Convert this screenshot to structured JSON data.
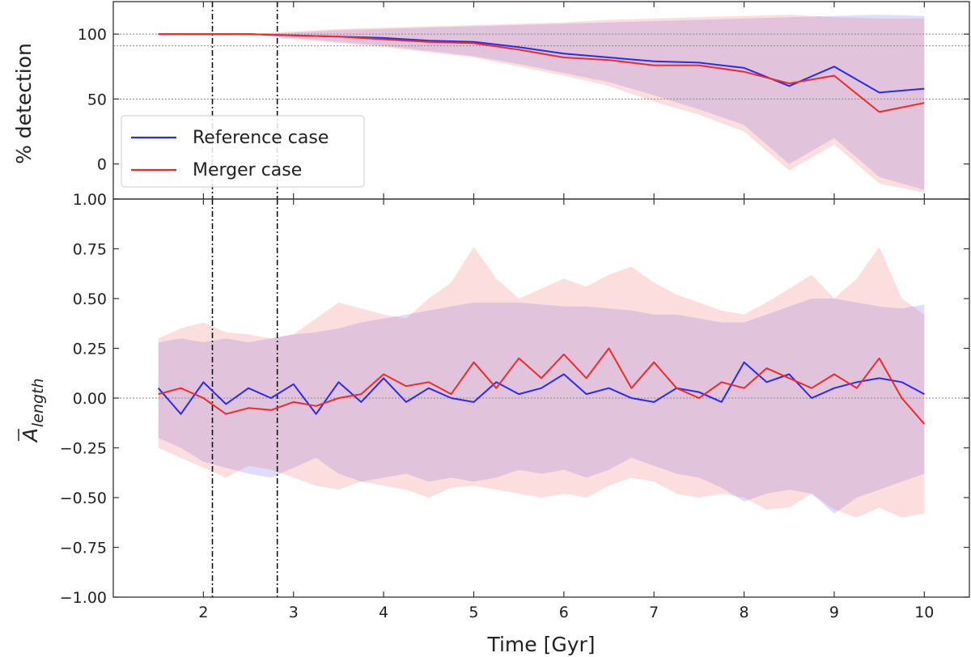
{
  "chart_data": [
    {
      "type": "line",
      "panel": "top",
      "ylabel": "% detection",
      "xlim": [
        1.0,
        10.5
      ],
      "ylim": [
        -27,
        125
      ],
      "yticks": [
        100,
        50,
        0
      ],
      "ytick_labels": [
        "100",
        "50",
        "0"
      ],
      "hlines": [
        100,
        91,
        50
      ],
      "vlines": [
        2.1,
        2.82
      ],
      "legend": {
        "placement": "lower-left",
        "entries": [
          {
            "label": "Reference case",
            "color": "#2a2af0"
          },
          {
            "label": "Merger case",
            "color": "#f02a2a"
          }
        ]
      },
      "x": [
        1.5,
        2.0,
        2.5,
        3.0,
        3.5,
        4.0,
        4.5,
        5.0,
        5.5,
        6.0,
        6.5,
        7.0,
        7.5,
        8.0,
        8.5,
        9.0,
        9.5,
        10.0
      ],
      "series": [
        {
          "name": "Reference case",
          "color": "#2a2af0",
          "values": [
            100,
            100,
            100,
            99,
            98,
            97,
            95,
            94,
            90,
            85,
            82,
            79,
            78,
            74,
            60,
            75,
            55,
            58
          ],
          "band_upper": [
            100,
            100,
            100,
            101,
            103,
            104,
            105,
            106,
            107,
            108,
            109,
            110,
            111,
            112,
            113,
            114,
            115,
            114
          ],
          "band_lower": [
            100,
            100,
            100,
            97,
            94,
            91,
            87,
            83,
            77,
            70,
            63,
            53,
            42,
            30,
            0,
            20,
            -10,
            -20
          ]
        },
        {
          "name": "Merger case",
          "color": "#f02a2a",
          "values": [
            100,
            100,
            100,
            99,
            98,
            96,
            94,
            93,
            88,
            82,
            80,
            76,
            76,
            71,
            62,
            68,
            40,
            47
          ],
          "band_upper": [
            100,
            100,
            100,
            102,
            104,
            105,
            106,
            107,
            108,
            109,
            111,
            112,
            113,
            114,
            115,
            113,
            112,
            112
          ],
          "band_lower": [
            100,
            100,
            100,
            96,
            93,
            90,
            86,
            82,
            75,
            68,
            60,
            48,
            38,
            25,
            -5,
            15,
            -15,
            -22
          ]
        }
      ]
    },
    {
      "type": "line",
      "panel": "bottom",
      "xlabel": "Time [Gyr]",
      "ylabel": "Ā_length",
      "ylabel_base": "A",
      "ylabel_sub": "length",
      "xlim": [
        1.0,
        10.5
      ],
      "ylim": [
        -1.0,
        1.0
      ],
      "xticks": [
        2,
        3,
        4,
        5,
        6,
        7,
        8,
        9,
        10
      ],
      "xtick_labels": [
        "2",
        "3",
        "4",
        "5",
        "6",
        "7",
        "8",
        "9",
        "10"
      ],
      "yticks": [
        1.0,
        0.75,
        0.5,
        0.25,
        0.0,
        -0.25,
        -0.5,
        -0.75,
        -1.0
      ],
      "ytick_labels": [
        "1.00",
        "0.75",
        "0.50",
        "0.25",
        "0.00",
        "−0.25",
        "−0.50",
        "−0.75",
        "−1.00"
      ],
      "hlines": [
        0.0
      ],
      "vlines": [
        2.1,
        2.82
      ],
      "x": [
        1.5,
        1.75,
        2.0,
        2.25,
        2.5,
        2.75,
        3.0,
        3.25,
        3.5,
        3.75,
        4.0,
        4.25,
        4.5,
        4.75,
        5.0,
        5.25,
        5.5,
        5.75,
        6.0,
        6.25,
        6.5,
        6.75,
        7.0,
        7.25,
        7.5,
        7.75,
        8.0,
        8.25,
        8.5,
        8.75,
        9.0,
        9.25,
        9.5,
        9.75,
        10.0
      ],
      "series": [
        {
          "name": "Reference case",
          "color": "#2a2af0",
          "values": [
            0.05,
            -0.08,
            0.08,
            -0.03,
            0.05,
            0.0,
            0.07,
            -0.08,
            0.08,
            -0.02,
            0.1,
            -0.02,
            0.05,
            0.0,
            -0.02,
            0.08,
            0.02,
            0.05,
            0.12,
            0.02,
            0.05,
            0.0,
            -0.02,
            0.05,
            0.03,
            -0.02,
            0.18,
            0.08,
            0.12,
            0.0,
            0.05,
            0.08,
            0.1,
            0.08,
            0.02
          ],
          "band_upper": [
            0.28,
            0.3,
            0.28,
            0.3,
            0.28,
            0.3,
            0.32,
            0.33,
            0.35,
            0.38,
            0.4,
            0.42,
            0.44,
            0.46,
            0.48,
            0.48,
            0.48,
            0.47,
            0.46,
            0.46,
            0.45,
            0.44,
            0.42,
            0.42,
            0.4,
            0.38,
            0.38,
            0.42,
            0.46,
            0.5,
            0.5,
            0.48,
            0.46,
            0.45,
            0.47
          ],
          "band_lower": [
            -0.2,
            -0.25,
            -0.32,
            -0.35,
            -0.38,
            -0.4,
            -0.35,
            -0.3,
            -0.38,
            -0.42,
            -0.4,
            -0.38,
            -0.42,
            -0.4,
            -0.42,
            -0.4,
            -0.36,
            -0.38,
            -0.36,
            -0.4,
            -0.36,
            -0.3,
            -0.34,
            -0.38,
            -0.4,
            -0.45,
            -0.52,
            -0.48,
            -0.46,
            -0.48,
            -0.58,
            -0.5,
            -0.46,
            -0.42,
            -0.38
          ]
        },
        {
          "name": "Merger case",
          "color": "#f02a2a",
          "values": [
            0.02,
            0.05,
            0.0,
            -0.08,
            -0.05,
            -0.06,
            -0.02,
            -0.04,
            0.0,
            0.02,
            0.12,
            0.06,
            0.08,
            0.02,
            0.18,
            0.05,
            0.2,
            0.1,
            0.22,
            0.1,
            0.25,
            0.05,
            0.18,
            0.05,
            0.0,
            0.08,
            0.05,
            0.15,
            0.1,
            0.05,
            0.12,
            0.05,
            0.2,
            0.0,
            -0.13
          ],
          "band_upper": [
            0.3,
            0.35,
            0.38,
            0.33,
            0.32,
            0.3,
            0.32,
            0.4,
            0.48,
            0.45,
            0.42,
            0.4,
            0.5,
            0.58,
            0.76,
            0.6,
            0.5,
            0.55,
            0.6,
            0.56,
            0.62,
            0.66,
            0.58,
            0.52,
            0.48,
            0.44,
            0.42,
            0.48,
            0.55,
            0.62,
            0.5,
            0.6,
            0.76,
            0.5,
            0.42
          ],
          "band_lower": [
            -0.25,
            -0.3,
            -0.35,
            -0.4,
            -0.34,
            -0.36,
            -0.4,
            -0.44,
            -0.46,
            -0.42,
            -0.44,
            -0.46,
            -0.5,
            -0.45,
            -0.44,
            -0.46,
            -0.48,
            -0.5,
            -0.48,
            -0.5,
            -0.44,
            -0.4,
            -0.42,
            -0.48,
            -0.5,
            -0.48,
            -0.5,
            -0.56,
            -0.55,
            -0.48,
            -0.56,
            -0.6,
            -0.55,
            -0.6,
            -0.58
          ]
        }
      ]
    }
  ]
}
